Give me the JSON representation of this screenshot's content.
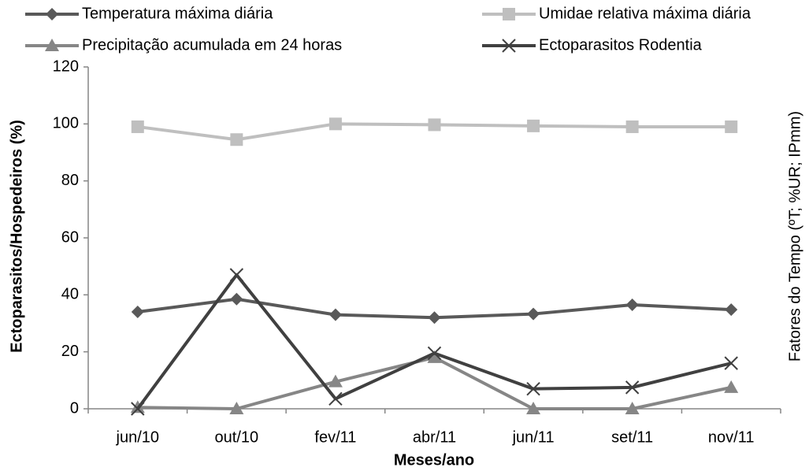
{
  "chart_data": {
    "type": "line",
    "y_label": "Ectoparasitos/Hospedeiros (%)",
    "y2_label": "Fatores do Tempo (ºT; %UR; IPmm)",
    "x_label": "Meses/ano",
    "categories": [
      "jun/10",
      "out/10",
      "fev/11",
      "abr/11",
      "jun/11",
      "set/11",
      "nov/11"
    ],
    "ylim": [
      0,
      120
    ],
    "yticks": [
      0,
      20,
      40,
      60,
      80,
      100,
      120
    ],
    "series": [
      {
        "name": "Temperatura máxima diária",
        "color": "#595959",
        "marker": "diamond",
        "values": [
          34,
          38.5,
          33,
          32,
          33.3,
          36.5,
          34.8
        ]
      },
      {
        "name": "Umidae relativa máxima diária",
        "color": "#bfbfbf",
        "marker": "square",
        "values": [
          99,
          94.5,
          100,
          99.7,
          99.3,
          99,
          99
        ]
      },
      {
        "name": "Precipitação acumulada em 24 horas",
        "color": "#868686",
        "marker": "triangle",
        "values": [
          0.5,
          0,
          9.5,
          18,
          0,
          0,
          7.5
        ]
      },
      {
        "name": "Ectoparasitos Rodentia",
        "color": "#404040",
        "marker": "x",
        "values": [
          0,
          47,
          3.5,
          19.5,
          7,
          7.5,
          16
        ]
      }
    ]
  }
}
